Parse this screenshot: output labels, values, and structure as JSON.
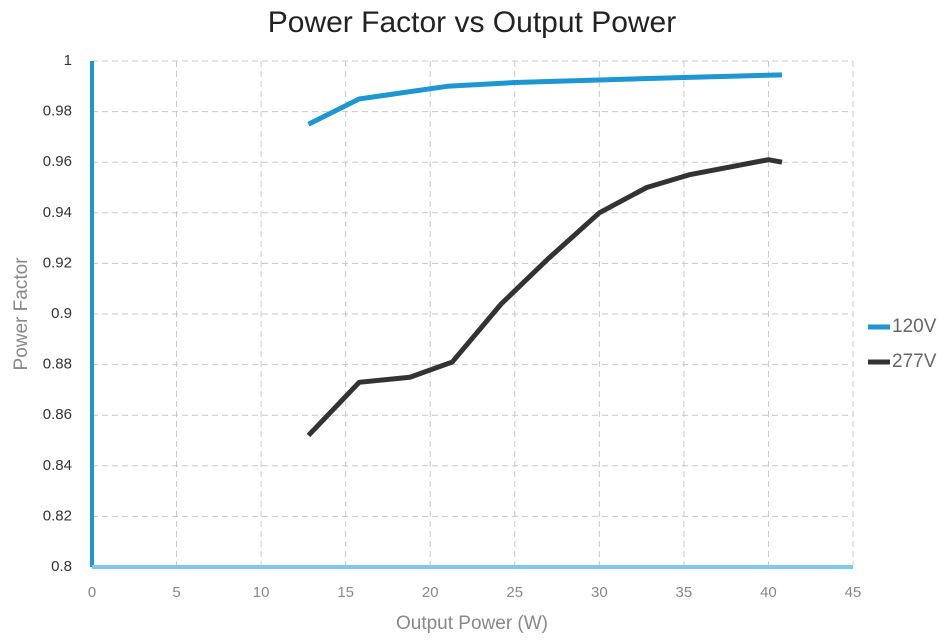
{
  "chart_data": {
    "type": "line",
    "title": "Power Factor vs Output Power",
    "xlabel": "Output Power (W)",
    "ylabel": "Power Factor",
    "series": [
      {
        "name": "120V",
        "color": "#1e96d2",
        "x": [
          12.8,
          15.8,
          21,
          25,
          30,
          35,
          40.8
        ],
        "values": [
          0.975,
          0.985,
          0.99,
          0.9915,
          0.9925,
          0.9935,
          0.9945
        ]
      },
      {
        "name": "277V",
        "color": "#333333",
        "x": [
          12.8,
          15.8,
          18.8,
          21.3,
          24.2,
          27,
          30,
          32.8,
          35.3,
          40,
          40.8
        ],
        "values": [
          0.852,
          0.873,
          0.875,
          0.881,
          0.904,
          0.922,
          0.94,
          0.95,
          0.955,
          0.961,
          0.96
        ]
      }
    ],
    "xlim": [
      0,
      45
    ],
    "xticks": [
      0,
      5,
      10,
      15,
      20,
      25,
      30,
      35,
      40,
      45
    ],
    "ylim": [
      0.8,
      1
    ],
    "yticks": [
      0.8,
      0.82,
      0.84,
      0.86,
      0.88,
      0.9,
      0.92,
      0.94,
      0.96,
      0.98,
      1
    ],
    "grid": true,
    "legend": "right"
  }
}
